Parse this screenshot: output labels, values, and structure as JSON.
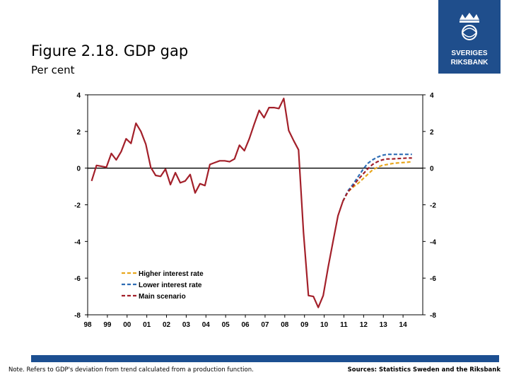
{
  "header": {
    "title": "Figure 2.18. GDP gap",
    "subtitle": "Per cent"
  },
  "logo": {
    "text_line1": "SVERIGES",
    "text_line2": "RIKSBANK",
    "bg_color": "#1f4e8c"
  },
  "footer": {
    "note": "Note. Refers to GDP's deviation from trend calculated from a production function.",
    "sources": "Sources: Statistics Sweden and the Riksbank"
  },
  "chart_data": {
    "type": "line",
    "title": "Figure 2.18. GDP gap",
    "ylabel": "Per cent",
    "xlim": [
      1998.0,
      2015.0
    ],
    "ylim": [
      -8,
      4
    ],
    "yticks": [
      4,
      2,
      0,
      -2,
      -4,
      -6,
      -8
    ],
    "xticks": [
      {
        "label": "98",
        "x": 1998.0
      },
      {
        "label": "99",
        "x": 1999.0
      },
      {
        "label": "00",
        "x": 2000.0
      },
      {
        "label": "01",
        "x": 2001.0
      },
      {
        "label": "02",
        "x": 2002.0
      },
      {
        "label": "03",
        "x": 2003.0
      },
      {
        "label": "04",
        "x": 2004.0
      },
      {
        "label": "05",
        "x": 2005.0
      },
      {
        "label": "06",
        "x": 2006.0
      },
      {
        "label": "07",
        "x": 2007.0
      },
      {
        "label": "08",
        "x": 2008.0
      },
      {
        "label": "09",
        "x": 2009.0
      },
      {
        "label": "10",
        "x": 2010.0
      },
      {
        "label": "11",
        "x": 2011.0
      },
      {
        "label": "12",
        "x": 2012.0
      },
      {
        "label": "13",
        "x": 2013.0
      },
      {
        "label": "14",
        "x": 2014.0
      }
    ],
    "legend_position": "bottom-left",
    "series": [
      {
        "name": "Main scenario (outcome)",
        "color": "#a3202a",
        "style": "solid",
        "points": [
          [
            1998.2,
            -0.7
          ],
          [
            1998.45,
            0.15
          ],
          [
            1998.7,
            0.1
          ],
          [
            1998.95,
            0.05
          ],
          [
            1999.2,
            0.8
          ],
          [
            1999.45,
            0.45
          ],
          [
            1999.7,
            0.9
          ],
          [
            1999.95,
            1.6
          ],
          [
            2000.2,
            1.35
          ],
          [
            2000.45,
            2.45
          ],
          [
            2000.7,
            2.0
          ],
          [
            2000.95,
            1.3
          ],
          [
            2001.2,
            0.05
          ],
          [
            2001.45,
            -0.4
          ],
          [
            2001.7,
            -0.45
          ],
          [
            2001.95,
            -0.05
          ],
          [
            2002.2,
            -0.9
          ],
          [
            2002.45,
            -0.25
          ],
          [
            2002.7,
            -0.8
          ],
          [
            2002.95,
            -0.7
          ],
          [
            2003.2,
            -0.35
          ],
          [
            2003.45,
            -1.35
          ],
          [
            2003.7,
            -0.85
          ],
          [
            2003.95,
            -0.95
          ],
          [
            2004.2,
            0.2
          ],
          [
            2004.45,
            0.3
          ],
          [
            2004.7,
            0.4
          ],
          [
            2004.95,
            0.4
          ],
          [
            2005.2,
            0.35
          ],
          [
            2005.45,
            0.5
          ],
          [
            2005.7,
            1.25
          ],
          [
            2005.95,
            0.95
          ],
          [
            2006.2,
            1.6
          ],
          [
            2006.45,
            2.4
          ],
          [
            2006.7,
            3.15
          ],
          [
            2006.95,
            2.75
          ],
          [
            2007.2,
            3.3
          ],
          [
            2007.45,
            3.3
          ],
          [
            2007.7,
            3.25
          ],
          [
            2007.95,
            3.8
          ],
          [
            2008.2,
            2.05
          ],
          [
            2008.45,
            1.5
          ],
          [
            2008.7,
            1.0
          ],
          [
            2008.95,
            -3.5
          ],
          [
            2009.2,
            -6.95
          ],
          [
            2009.45,
            -7.0
          ],
          [
            2009.7,
            -7.6
          ],
          [
            2009.95,
            -6.95
          ],
          [
            2010.2,
            -5.4
          ],
          [
            2010.45,
            -4.0
          ],
          [
            2010.7,
            -2.6
          ],
          [
            2010.95,
            -1.8
          ]
        ]
      },
      {
        "name": "Higher interest rate",
        "color": "#e8a71f",
        "style": "dashed",
        "legend": true,
        "points": [
          [
            2010.95,
            -1.8
          ],
          [
            2011.2,
            -1.3
          ],
          [
            2011.45,
            -1.05
          ],
          [
            2011.7,
            -0.85
          ],
          [
            2011.95,
            -0.6
          ],
          [
            2012.2,
            -0.35
          ],
          [
            2012.45,
            -0.1
          ],
          [
            2012.7,
            0.05
          ],
          [
            2012.95,
            0.15
          ],
          [
            2013.2,
            0.2
          ],
          [
            2013.45,
            0.25
          ],
          [
            2013.7,
            0.28
          ],
          [
            2013.95,
            0.3
          ],
          [
            2014.2,
            0.32
          ],
          [
            2014.45,
            0.35
          ]
        ]
      },
      {
        "name": "Lower interest rate",
        "color": "#2e6db4",
        "style": "dashed",
        "legend": true,
        "points": [
          [
            2010.95,
            -1.8
          ],
          [
            2011.2,
            -1.25
          ],
          [
            2011.45,
            -0.9
          ],
          [
            2011.7,
            -0.5
          ],
          [
            2011.95,
            -0.1
          ],
          [
            2012.2,
            0.25
          ],
          [
            2012.45,
            0.45
          ],
          [
            2012.7,
            0.6
          ],
          [
            2012.95,
            0.7
          ],
          [
            2013.2,
            0.75
          ],
          [
            2013.45,
            0.75
          ],
          [
            2013.7,
            0.75
          ],
          [
            2013.95,
            0.75
          ],
          [
            2014.2,
            0.75
          ],
          [
            2014.45,
            0.75
          ]
        ]
      },
      {
        "name": "Main scenario",
        "color": "#a3202a",
        "style": "dashed",
        "legend": true,
        "points": [
          [
            2010.95,
            -1.8
          ],
          [
            2011.2,
            -1.3
          ],
          [
            2011.45,
            -1.0
          ],
          [
            2011.7,
            -0.65
          ],
          [
            2011.95,
            -0.35
          ],
          [
            2012.2,
            -0.05
          ],
          [
            2012.45,
            0.2
          ],
          [
            2012.7,
            0.35
          ],
          [
            2012.95,
            0.45
          ],
          [
            2013.2,
            0.5
          ],
          [
            2013.45,
            0.5
          ],
          [
            2013.7,
            0.52
          ],
          [
            2013.95,
            0.53
          ],
          [
            2014.2,
            0.55
          ],
          [
            2014.45,
            0.55
          ]
        ]
      }
    ]
  }
}
